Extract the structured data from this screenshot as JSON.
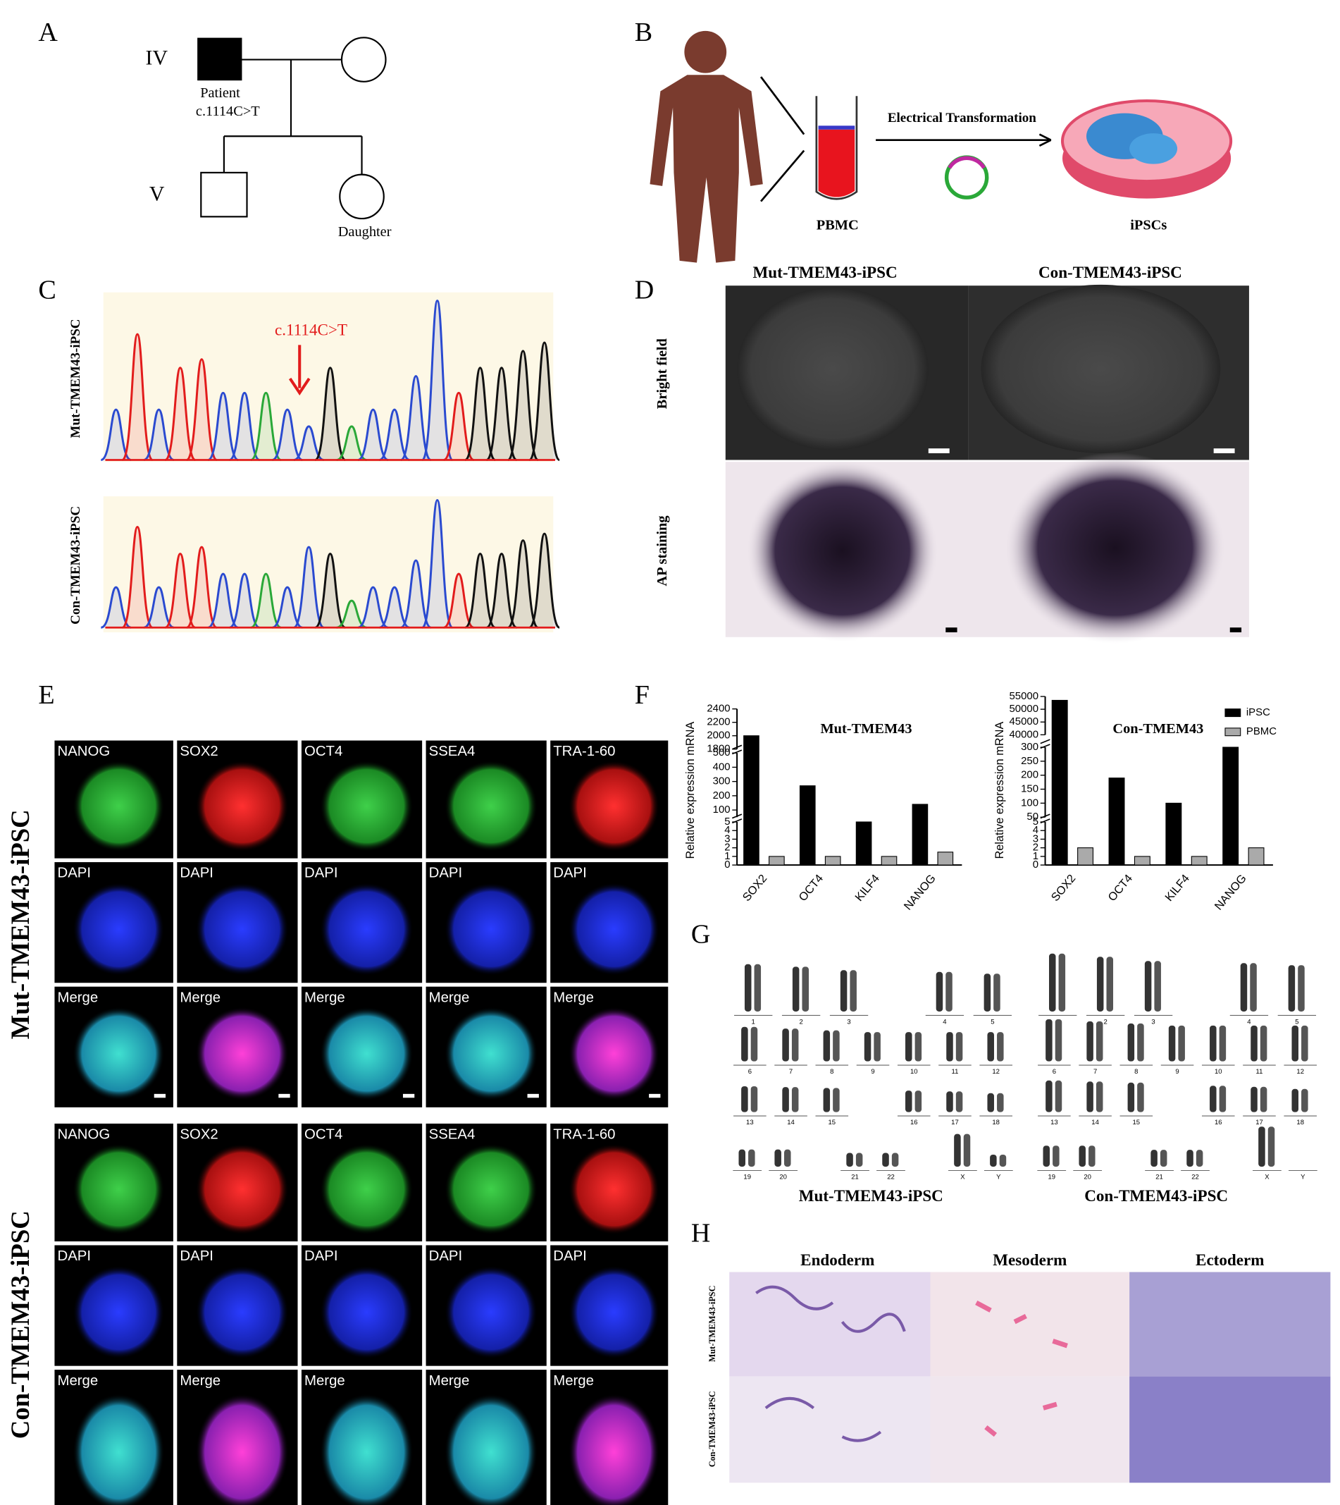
{
  "panels": {
    "A": {
      "label": "A",
      "generations": [
        "IV",
        "V"
      ],
      "patient": "Patient",
      "mutation": "c.1114C>T",
      "daughter": "Daughter"
    },
    "B": {
      "label": "B",
      "method": "Electrical Transformation",
      "source": "PBMC",
      "result": "iPSCs"
    },
    "C": {
      "label": "C",
      "samples": [
        "Mut-TMEM43-iPSC",
        "Con-TMEM43-iPSC"
      ],
      "annotation": "c.1114C>T"
    },
    "D": {
      "label": "D",
      "columns": [
        "Mut-TMEM43-iPSC",
        "Con-TMEM43-iPSC"
      ],
      "rows": [
        "Bright field",
        "AP staining"
      ]
    },
    "E": {
      "label": "E",
      "groups": [
        "Mut-TMEM43-iPSC",
        "Con-TMEM43-iPSC"
      ],
      "markers": [
        "NANOG",
        "SOX2",
        "OCT4",
        "SSEA4",
        "TRA-1-60"
      ],
      "dapi": "DAPI",
      "merge": "Merge"
    },
    "F": {
      "label": "F"
    },
    "G": {
      "label": "G",
      "captions": [
        "Mut-TMEM43-iPSC",
        "Con-TMEM43-iPSC"
      ],
      "chromosomes": [
        "1",
        "2",
        "3",
        "4",
        "5",
        "6",
        "7",
        "8",
        "9",
        "10",
        "11",
        "12",
        "13",
        "14",
        "15",
        "16",
        "17",
        "18",
        "19",
        "20",
        "21",
        "22",
        "X",
        "Y"
      ]
    },
    "H": {
      "label": "H",
      "germ_layers": [
        "Endoderm",
        "Mesoderm",
        "Ectoderm"
      ],
      "rows": [
        "Mut-TMEM43-iPSC",
        "Con-TMEM43-iPSC"
      ]
    }
  },
  "chart_data": [
    {
      "type": "bar",
      "title": "Mut-TMEM43",
      "y_label": "Relative expression  mRNA",
      "categories": [
        "SOX2",
        "OCT4",
        "KILF4",
        "NANOG"
      ],
      "series": [
        {
          "name": "iPSC",
          "color": "#000000",
          "values": [
            2000,
            270,
            5,
            140
          ]
        },
        {
          "name": "PBMC",
          "color": "#aaaaaa",
          "values": [
            1,
            1,
            1,
            1.5
          ]
        }
      ],
      "ylim_segments": [
        [
          0,
          5
        ],
        [
          50,
          500
        ],
        [
          1800,
          2400
        ]
      ],
      "yticks": [
        0,
        1,
        2,
        3,
        4,
        5,
        100,
        200,
        300,
        400,
        500,
        1800,
        2000,
        2200,
        2400
      ]
    },
    {
      "type": "bar",
      "title": "Con-TMEM43",
      "y_label": "Relative expression  mRNA",
      "categories": [
        "SOX2",
        "OCT4",
        "KILF4",
        "NANOG"
      ],
      "series": [
        {
          "name": "iPSC",
          "color": "#000000",
          "values": [
            53500,
            190,
            100,
            300
          ]
        },
        {
          "name": "PBMC",
          "color": "#aaaaaa",
          "values": [
            2,
            1,
            1,
            2
          ]
        }
      ],
      "ylim_segments": [
        [
          0,
          5
        ],
        [
          50,
          300
        ],
        [
          40000,
          55000
        ]
      ],
      "yticks": [
        0,
        1,
        2,
        3,
        4,
        5,
        50,
        100,
        150,
        200,
        250,
        300,
        40000,
        45000,
        50000,
        55000
      ],
      "legend": "top-right"
    }
  ]
}
